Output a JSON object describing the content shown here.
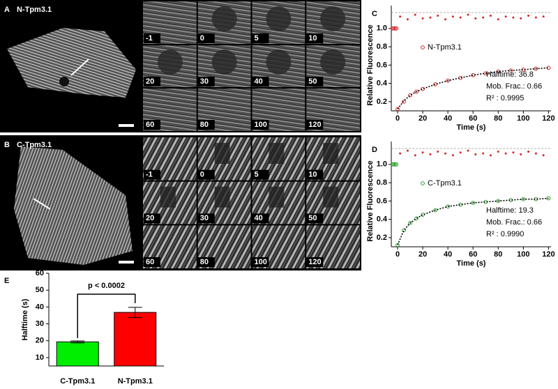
{
  "panels": [
    {
      "letter": "A",
      "title": "N-Tpm3.1",
      "frames": [
        "-1",
        "0",
        "5",
        "10",
        "20",
        "30",
        "40",
        "50",
        "60",
        "80",
        "100",
        "120"
      ]
    },
    {
      "letter": "B",
      "title": "C-Tpm3.1",
      "frames": [
        "-1",
        "0",
        "5",
        "10",
        "20",
        "30",
        "40",
        "50",
        "60",
        "80",
        "100",
        "120"
      ]
    }
  ],
  "chart_data": [
    {
      "type": "scatter",
      "letter": "C",
      "xlabel": "Time (s)",
      "ylabel": "Relative Fluorescence",
      "xlim": [
        -5,
        122
      ],
      "ylim": [
        0.1,
        1.25
      ],
      "xticks": [
        0,
        20,
        40,
        60,
        80,
        100,
        120
      ],
      "yticks": [
        0.2,
        0.4,
        0.6,
        0.8,
        {
          "value": 1,
          "label": "1.0"
        }
      ],
      "annotations": [
        "Halftime: 36.8",
        "Mob. Frac.: 0.66",
        "R² : 0.9995"
      ],
      "series": [
        {
          "name": "N-Tpm3.1",
          "color": "#d62728",
          "marker": "circle",
          "x": [
            -4,
            -3,
            -2,
            -1,
            0,
            5,
            10,
            15,
            20,
            30,
            40,
            50,
            60,
            70,
            80,
            90,
            100,
            110,
            120
          ],
          "values": [
            1,
            1,
            1,
            1,
            0.12,
            0.2,
            0.27,
            0.31,
            0.34,
            0.39,
            0.43,
            0.46,
            0.49,
            0.51,
            0.53,
            0.54,
            0.55,
            0.56,
            0.57
          ]
        },
        {
          "color": "#000000",
          "marker": "line",
          "x": [
            0,
            5,
            10,
            15,
            20,
            30,
            40,
            50,
            60,
            70,
            80,
            90,
            100,
            110,
            120
          ],
          "values": [
            0.12,
            0.21,
            0.27,
            0.31,
            0.34,
            0.39,
            0.43,
            0.46,
            0.49,
            0.51,
            0.53,
            0.54,
            0.55,
            0.56,
            0.57
          ]
        },
        {
          "color": "#d62728",
          "marker": "dot",
          "x": [
            2,
            8,
            14,
            20,
            26,
            32,
            38,
            44,
            50,
            56,
            62,
            68,
            74,
            80,
            86,
            92,
            98,
            104,
            110,
            116
          ],
          "values": [
            1.13,
            1.1,
            1.15,
            1.11,
            1.12,
            1.14,
            1.1,
            1.13,
            1.12,
            1.15,
            1.11,
            1.12,
            1.14,
            1.1,
            1.13,
            1.12,
            1.11,
            1.14,
            1.12,
            1.13
          ]
        }
      ]
    },
    {
      "type": "scatter",
      "letter": "D",
      "xlabel": "Time (s)",
      "ylabel": "Relative Fluorescence",
      "xlim": [
        -5,
        122
      ],
      "ylim": [
        0.1,
        1.25
      ],
      "xticks": [
        0,
        20,
        40,
        60,
        80,
        100,
        120
      ],
      "yticks": [
        0.2,
        0.4,
        0.6,
        0.8,
        {
          "value": 1,
          "label": "1.0"
        }
      ],
      "annotations": [
        "Halftime: 19.3",
        "Mob. Frac.: 0.66",
        "R² : 0.9990"
      ],
      "series": [
        {
          "name": "C-Tpm3.1",
          "color": "#2ca02c",
          "marker": "circle",
          "x": [
            -4,
            -3,
            -2,
            -1,
            0,
            5,
            10,
            15,
            20,
            30,
            40,
            50,
            60,
            70,
            80,
            90,
            100,
            110,
            120
          ],
          "values": [
            1,
            1,
            1,
            1,
            0.12,
            0.28,
            0.36,
            0.41,
            0.45,
            0.5,
            0.54,
            0.56,
            0.58,
            0.59,
            0.6,
            0.61,
            0.62,
            0.62,
            0.63
          ]
        },
        {
          "color": "#000000",
          "marker": "line",
          "x": [
            0,
            5,
            10,
            15,
            20,
            30,
            40,
            50,
            60,
            70,
            80,
            90,
            100,
            110,
            120
          ],
          "values": [
            0.12,
            0.28,
            0.36,
            0.41,
            0.45,
            0.5,
            0.54,
            0.56,
            0.58,
            0.59,
            0.6,
            0.61,
            0.62,
            0.62,
            0.63
          ]
        },
        {
          "color": "#d62728",
          "marker": "dot",
          "x": [
            2,
            8,
            14,
            20,
            26,
            32,
            38,
            44,
            50,
            56,
            62,
            68,
            74,
            80,
            86,
            92,
            98,
            104,
            110,
            116
          ],
          "values": [
            1.12,
            1.15,
            1.1,
            1.13,
            1.11,
            1.14,
            1.12,
            1.1,
            1.13,
            1.15,
            1.11,
            1.12,
            1.1,
            1.14,
            1.12,
            1.13,
            1.11,
            1.14,
            1.12,
            1.1
          ]
        }
      ]
    },
    {
      "type": "bar",
      "letter": "E",
      "ylabel": "Halftime (s)",
      "annotation": "p < 0.0002",
      "categories": [
        "C-Tpm3.1",
        "N-Tpm3.1"
      ],
      "values": [
        19.3,
        36.8
      ],
      "errors": [
        0.6,
        3
      ],
      "colors": [
        "#00ee00",
        "#ff0000"
      ],
      "ylim": [
        5,
        60
      ],
      "yticks": [
        10,
        20,
        30,
        40,
        50,
        60
      ]
    }
  ]
}
